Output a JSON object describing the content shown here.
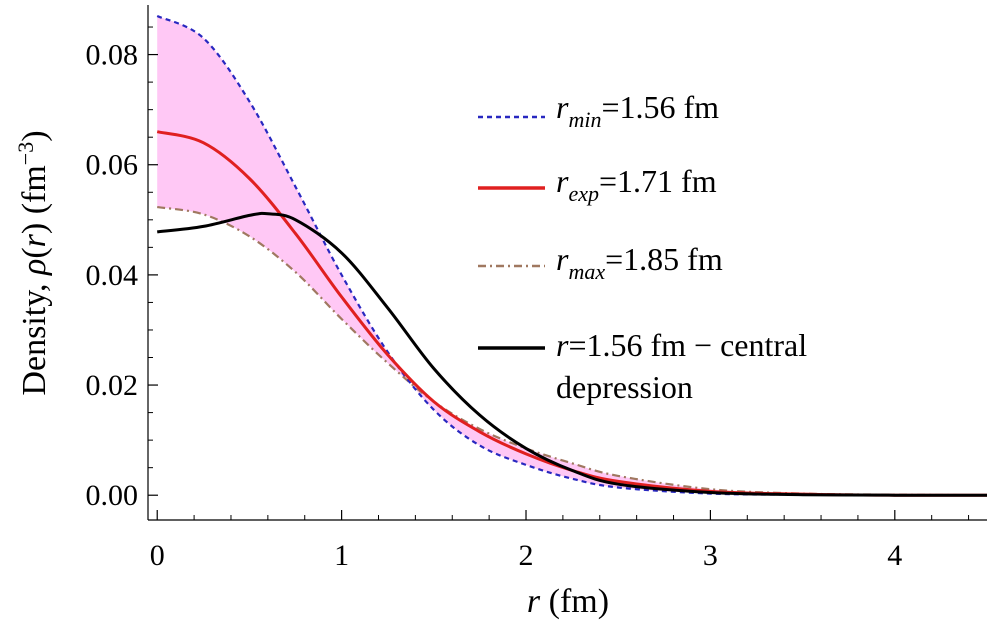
{
  "chart_data": {
    "type": "line",
    "x_axis": {
      "label_var": "r",
      "label_unit": " (fm)",
      "range": [
        -0.05,
        4.5
      ],
      "ticks": [
        0,
        1,
        2,
        3,
        4
      ],
      "tick_labels": [
        "0",
        "1",
        "2",
        "3",
        "4"
      ]
    },
    "y_axis": {
      "label_prefix": "Density, ",
      "label_rho": "ρ",
      "label_arg_open": "(",
      "label_arg_var": "r",
      "label_arg_close": ")",
      "label_unit_open": " (fm",
      "label_unit_exp": "−3",
      "label_unit_close": ")",
      "range": [
        -0.0045,
        0.089
      ],
      "ticks": [
        0,
        0.02,
        0.04,
        0.06,
        0.08
      ],
      "tick_labels": [
        "0.00",
        "0.02",
        "0.04",
        "0.06",
        "0.08"
      ]
    },
    "band": {
      "between": [
        "r_min",
        "r_max"
      ],
      "color": "#ffc8f5"
    },
    "series": [
      {
        "id": "r_min",
        "legend_var": "r",
        "legend_sub": "min",
        "legend_value": "=1.56 fm",
        "color": "#2828c0",
        "style": "dashed",
        "x": [
          0,
          0.25,
          0.5,
          0.75,
          1.0,
          1.25,
          1.5,
          1.75,
          2.0,
          2.25,
          2.5,
          3.0,
          3.5,
          4.0,
          4.5
        ],
        "y": [
          0.087,
          0.083,
          0.0715,
          0.056,
          0.04,
          0.026,
          0.0155,
          0.009,
          0.0055,
          0.003,
          0.0014,
          0.0003,
          0.0001,
          0.0,
          0.0
        ]
      },
      {
        "id": "r_exp",
        "legend_var": "r",
        "legend_sub": "exp",
        "legend_value": "=1.71 fm",
        "color": "#e02020",
        "style": "solid",
        "x": [
          0,
          0.25,
          0.5,
          0.75,
          1.0,
          1.25,
          1.5,
          1.75,
          2.0,
          2.25,
          2.5,
          3.0,
          3.5,
          4.0,
          4.5
        ],
        "y": [
          0.066,
          0.064,
          0.0575,
          0.0475,
          0.036,
          0.0255,
          0.017,
          0.0115,
          0.0075,
          0.0045,
          0.0025,
          0.0007,
          0.0002,
          0.0,
          0.0
        ]
      },
      {
        "id": "r_max",
        "legend_var": "r",
        "legend_sub": "max",
        "legend_value": "=1.85 fm",
        "color": "#a07860",
        "style": "dashdot",
        "x": [
          0,
          0.25,
          0.5,
          0.75,
          1.0,
          1.25,
          1.5,
          1.75,
          2.0,
          2.25,
          2.5,
          3.0,
          3.5,
          4.0,
          4.5
        ],
        "y": [
          0.0523,
          0.051,
          0.047,
          0.0405,
          0.032,
          0.024,
          0.017,
          0.012,
          0.0085,
          0.0058,
          0.0035,
          0.0011,
          0.0003,
          0.0001,
          0.0
        ]
      },
      {
        "id": "r_central",
        "legend_var": "r",
        "legend_sub": "",
        "legend_value": "=1.56 fm − central",
        "legend_line2": "depression",
        "color": "#000000",
        "style": "solid",
        "x": [
          0,
          0.25,
          0.5,
          0.6,
          0.75,
          1.0,
          1.25,
          1.5,
          1.75,
          2.0,
          2.25,
          2.5,
          3.0,
          3.5,
          4.0,
          4.5
        ],
        "y": [
          0.0478,
          0.0488,
          0.0508,
          0.0511,
          0.05,
          0.044,
          0.034,
          0.023,
          0.0145,
          0.0085,
          0.0045,
          0.002,
          0.0005,
          0.0001,
          0.0,
          0.0
        ]
      }
    ]
  }
}
